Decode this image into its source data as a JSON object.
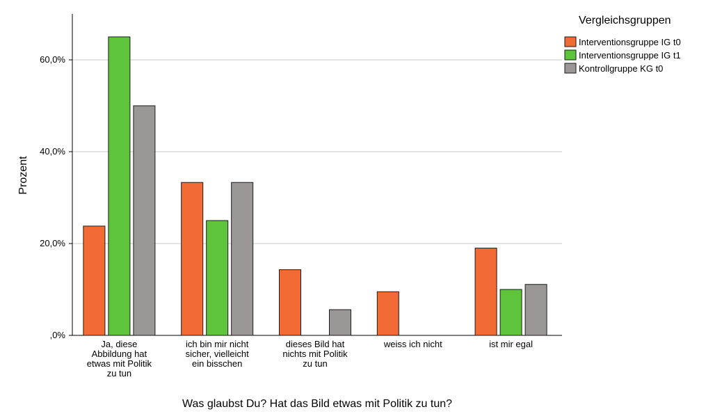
{
  "chart_data": {
    "type": "bar",
    "title": "",
    "xlabel": "Was glaubst Du? Hat das Bild etwas mit Politik zu tun?",
    "ylabel": "Prozent",
    "ylim": [
      0,
      70
    ],
    "yticks": [
      0,
      20,
      40,
      60
    ],
    "ytick_labels": [
      ",0%",
      "20,0%",
      "40,0%",
      "60,0%"
    ],
    "grid": true,
    "legend_title": "Vergleichsgruppen",
    "legend_position": "top-right",
    "categories": [
      [
        "Ja, diese",
        "Abbildung hat",
        "etwas mit Politik",
        "zu tun"
      ],
      [
        "ich bin mir nicht",
        "sicher, vielleicht",
        "ein bisschen"
      ],
      [
        "dieses Bild hat",
        "nichts mit Politik",
        "zu tun"
      ],
      [
        "weiss ich nicht"
      ],
      [
        "ist mir egal"
      ]
    ],
    "series": [
      {
        "name": "Interventionsgruppe IG t0",
        "color": "#f26b35",
        "values": [
          23.8,
          33.3,
          14.3,
          9.5,
          19.0
        ]
      },
      {
        "name": "Interventionsgruppe IG t1",
        "color": "#5ec43c",
        "values": [
          65.0,
          25.0,
          0,
          0,
          10.0
        ]
      },
      {
        "name": "Kontrollgruppe KG t0",
        "color": "#9b9797",
        "values": [
          50.0,
          33.3,
          5.6,
          0,
          11.1
        ]
      }
    ]
  }
}
